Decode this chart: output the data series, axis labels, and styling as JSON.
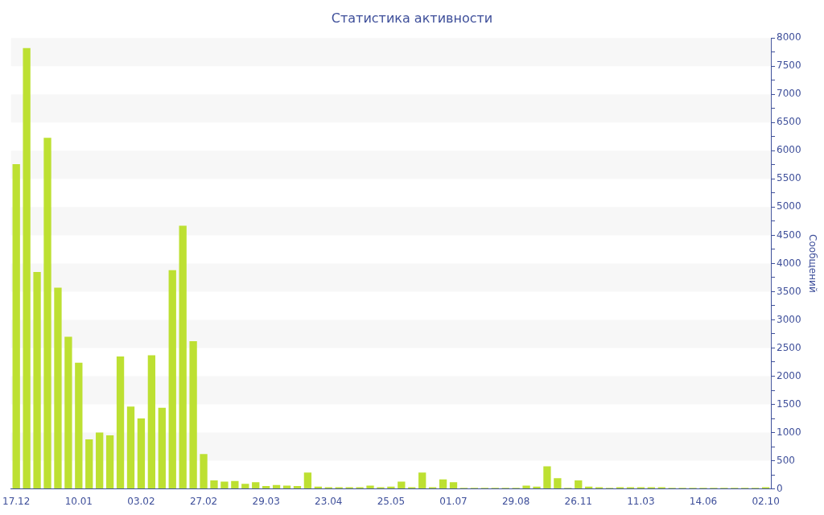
{
  "chart_data": {
    "type": "bar",
    "title": "Статистика активности",
    "ylabel": "Сообщений",
    "categories": [
      "17.12",
      null,
      null,
      null,
      null,
      null,
      "10.01",
      null,
      null,
      null,
      null,
      null,
      "03.02",
      null,
      null,
      null,
      null,
      null,
      "27.02",
      null,
      null,
      null,
      null,
      null,
      "29.03",
      null,
      null,
      null,
      null,
      null,
      "23.04",
      null,
      null,
      null,
      null,
      null,
      "25.05",
      null,
      null,
      null,
      null,
      null,
      "01.07",
      null,
      null,
      null,
      null,
      null,
      "29.08",
      null,
      null,
      null,
      null,
      null,
      "26.11",
      null,
      null,
      null,
      null,
      null,
      "11.03",
      null,
      null,
      null,
      null,
      null,
      "14.06",
      null,
      null,
      null,
      null,
      null,
      "02.10"
    ],
    "values": [
      5760,
      7820,
      3850,
      6230,
      3570,
      2700,
      2240,
      880,
      1000,
      950,
      2350,
      1460,
      1250,
      2370,
      1440,
      3880,
      4670,
      2620,
      620,
      150,
      130,
      140,
      90,
      120,
      50,
      70,
      60,
      50,
      290,
      40,
      30,
      30,
      30,
      30,
      60,
      30,
      40,
      130,
      30,
      290,
      30,
      170,
      120,
      20,
      20,
      20,
      20,
      20,
      20,
      60,
      40,
      400,
      190,
      20,
      150,
      40,
      30,
      20,
      30,
      30,
      30,
      30,
      30,
      20,
      20,
      20,
      20,
      20,
      20,
      20,
      20,
      20,
      30
    ],
    "color": "#bde032",
    "ylim": [
      0,
      8000
    ],
    "yticks": [
      0,
      {
        "value": 250,
        "label": null
      },
      500,
      {
        "value": 750,
        "label": null
      },
      1000,
      {
        "value": 1250,
        "label": null
      },
      1500,
      {
        "value": 1750,
        "label": null
      },
      2000,
      {
        "value": 2250,
        "label": null
      },
      2500,
      {
        "value": 2750,
        "label": null
      },
      3000,
      {
        "value": 3250,
        "label": null
      },
      3500,
      {
        "value": 3750,
        "label": null
      },
      4000,
      {
        "value": 4250,
        "label": null
      },
      4500,
      {
        "value": 4750,
        "label": null
      },
      5000,
      {
        "value": 5250,
        "label": null
      },
      5500,
      {
        "value": 5750,
        "label": null
      },
      6000,
      {
        "value": 6250,
        "label": null
      },
      6500,
      {
        "value": 6750,
        "label": null
      },
      7000,
      {
        "value": 7250,
        "label": null
      },
      7500,
      {
        "value": 7750,
        "label": null
      },
      8000
    ]
  }
}
